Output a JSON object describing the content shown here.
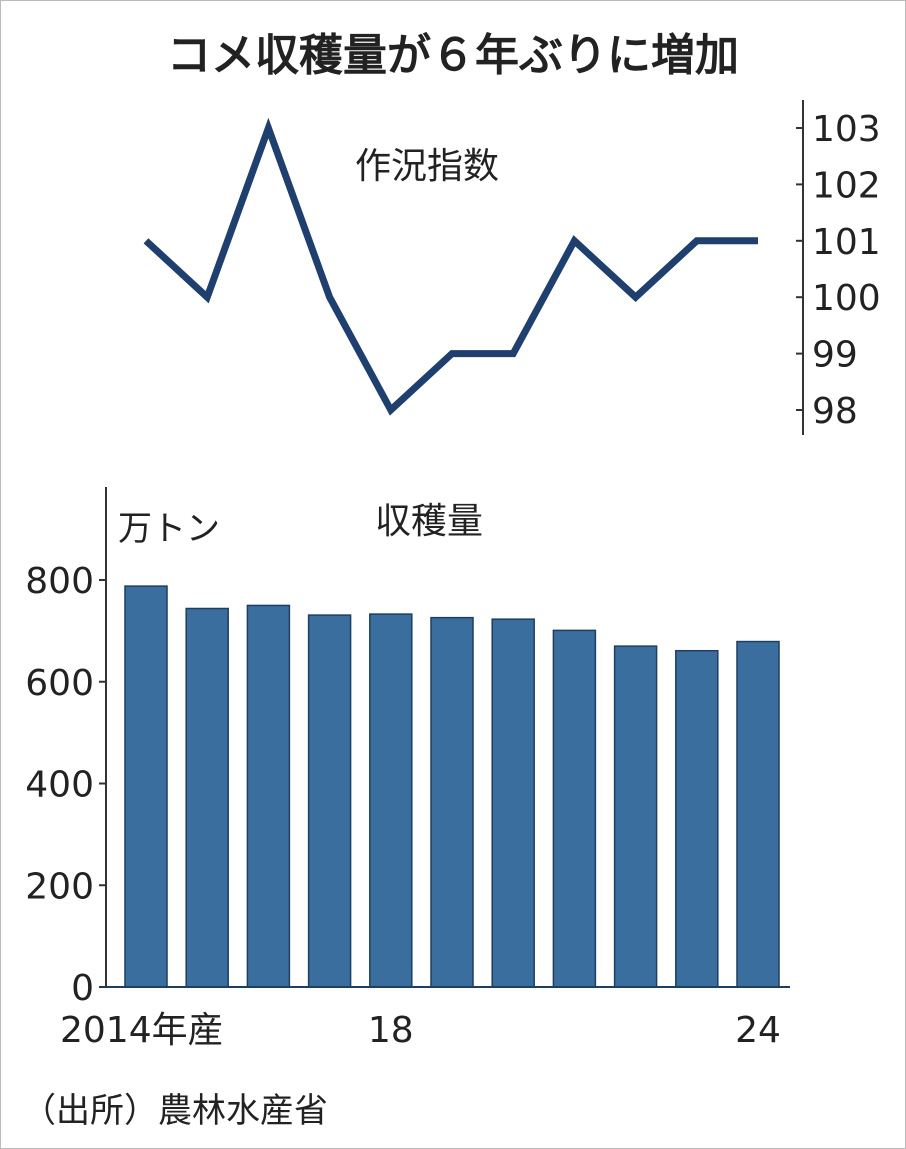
{
  "colors": {
    "line": "#1f3f6e",
    "bar": "#3a6e9e",
    "axis": "#333333",
    "text": "#222222"
  },
  "chart_data": [
    {
      "type": "line",
      "title": "コメ収穫量が６年ぶりに増加",
      "subtitle": "作況指数",
      "x": [
        2014,
        2015,
        2016,
        2017,
        2018,
        2019,
        2020,
        2021,
        2022,
        2023,
        2024
      ],
      "values": [
        101,
        100,
        103,
        100,
        98,
        99,
        99,
        101,
        100,
        101,
        101
      ],
      "ylim": [
        98,
        103
      ],
      "yticks": [
        "98",
        "99",
        "100",
        "101",
        "102",
        "103"
      ],
      "axis_side": "right"
    },
    {
      "type": "bar",
      "subtitle": "収穫量",
      "ylabel": "万トン",
      "categories": [
        "2014",
        "2015",
        "2016",
        "2017",
        "2018",
        "2019",
        "2020",
        "2021",
        "2022",
        "2023",
        "2024"
      ],
      "values": [
        788,
        744,
        750,
        731,
        733,
        726,
        723,
        701,
        670,
        661,
        679
      ],
      "ylim": [
        0,
        800
      ],
      "yticks": [
        "0",
        "200",
        "400",
        "600",
        "800"
      ],
      "xtick_labels": [
        "2014年産",
        "18",
        "24"
      ],
      "source": "（出所）農林水産省"
    }
  ]
}
